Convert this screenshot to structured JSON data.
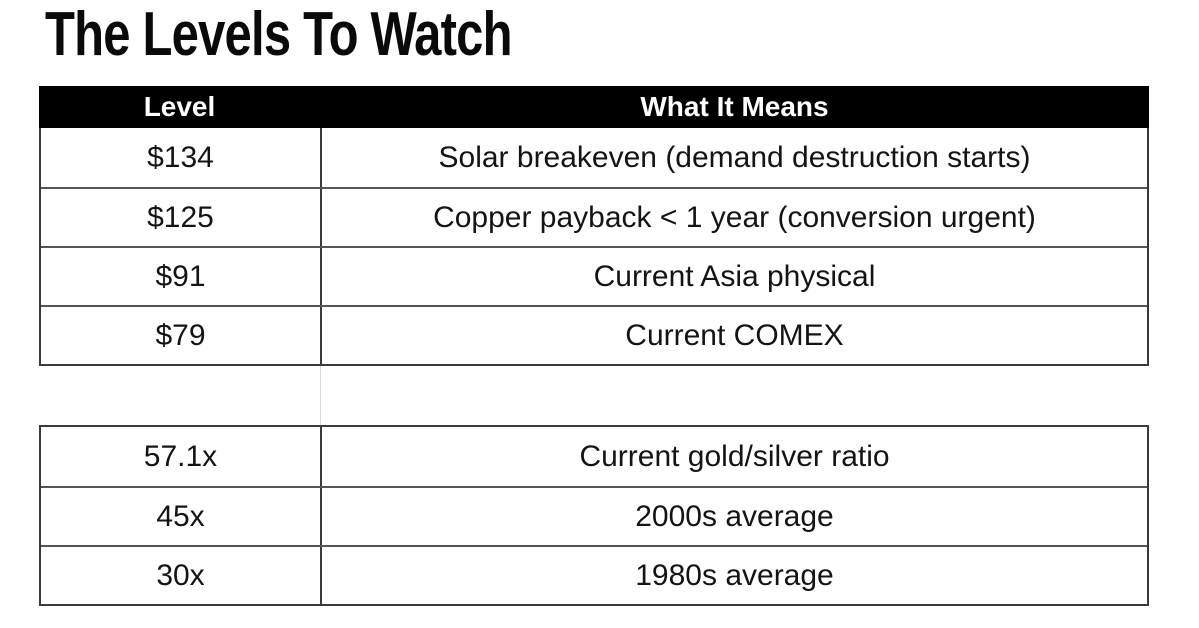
{
  "page": {
    "title": "The Levels To Watch"
  },
  "colors": {
    "header_bg": "#000000",
    "header_text": "#ffffff",
    "body_text": "#141414",
    "border_dark": "#3a3a3a",
    "border_row": "#555555",
    "faint_divider": "#d9d9d9",
    "background": "#ffffff"
  },
  "table": {
    "headers": [
      {
        "label": "Level"
      },
      {
        "label": "What It Means"
      }
    ],
    "sections": [
      {
        "name": "price-levels",
        "rows": [
          {
            "level": "$134",
            "meaning": "Solar breakeven (demand destruction starts)"
          },
          {
            "level": "$125",
            "meaning": "Copper payback < 1 year (conversion urgent)"
          },
          {
            "level": "$91",
            "meaning": "Current Asia physical"
          },
          {
            "level": "$79",
            "meaning": "Current COMEX"
          }
        ]
      },
      {
        "name": "gold-silver-ratio",
        "rows": [
          {
            "level": "57.1x",
            "meaning": "Current gold/silver ratio"
          },
          {
            "level": "45x",
            "meaning": "2000s average"
          },
          {
            "level": "30x",
            "meaning": "1980s average"
          }
        ]
      }
    ]
  }
}
